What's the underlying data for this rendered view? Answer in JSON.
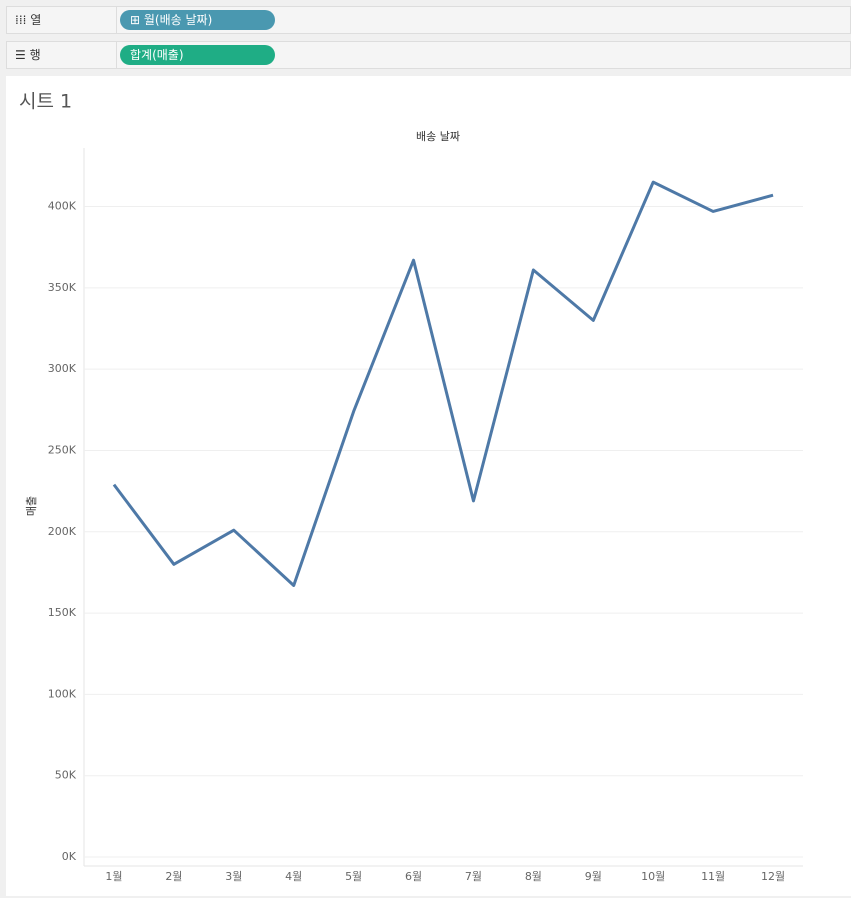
{
  "shelves": {
    "columns": {
      "label": "열",
      "pill": "월(배송 날짜)"
    },
    "rows": {
      "label": "행",
      "pill": "합계(매출)"
    }
  },
  "chart_data": {
    "type": "line",
    "title": "시트 1",
    "x_axis_title": "배송 날짜",
    "y_axis_title": "매출",
    "categories": [
      "1월",
      "2월",
      "3월",
      "4월",
      "5월",
      "6월",
      "7월",
      "8월",
      "9월",
      "10월",
      "11월",
      "12월"
    ],
    "values": [
      229000,
      180000,
      201000,
      167000,
      274000,
      367000,
      219000,
      361000,
      330000,
      415000,
      397000,
      407000
    ],
    "color": "#4e79a7",
    "ylim": [
      -5500,
      436000
    ],
    "yticks": [
      {
        "value": 0,
        "label": "0K"
      },
      {
        "value": 50000,
        "label": "50K"
      },
      {
        "value": 100000,
        "label": "100K"
      },
      {
        "value": 150000,
        "label": "150K"
      },
      {
        "value": 200000,
        "label": "200K"
      },
      {
        "value": 250000,
        "label": "250K"
      },
      {
        "value": 300000,
        "label": "300K"
      },
      {
        "value": 350000,
        "label": "350K"
      },
      {
        "value": 400000,
        "label": "400K"
      }
    ],
    "grid": true
  }
}
